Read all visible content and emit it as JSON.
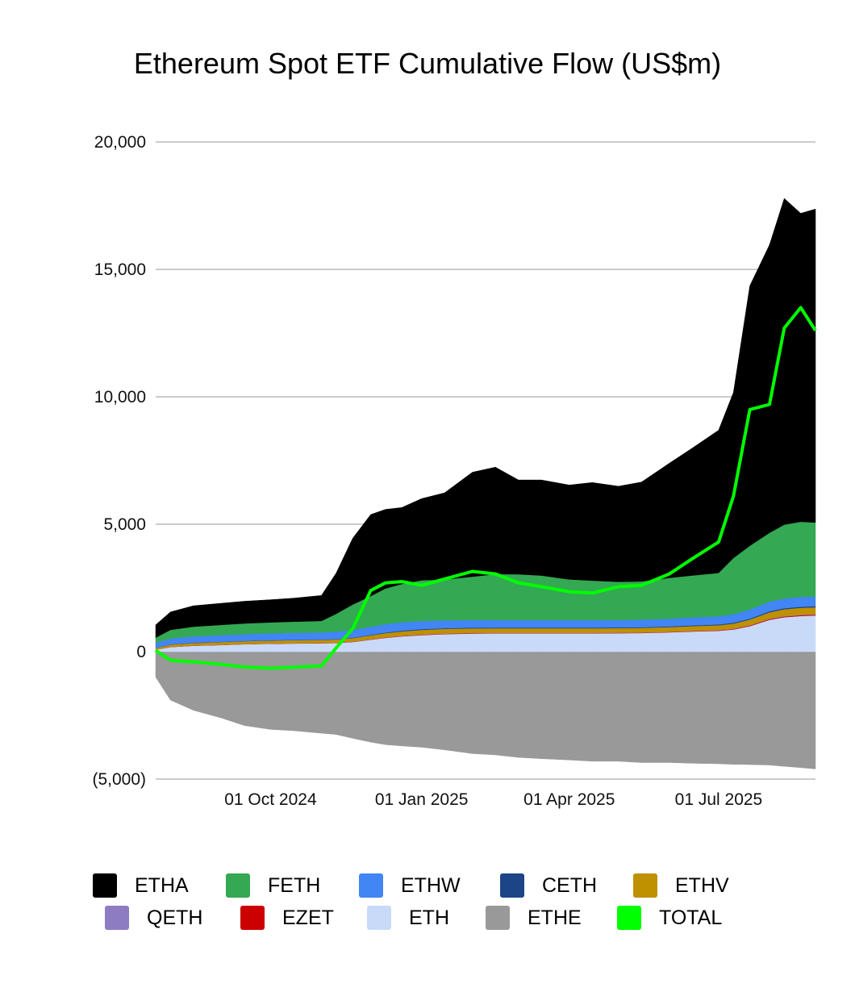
{
  "chart_data": {
    "type": "area",
    "title": "Ethereum Spot ETF Cumulative Flow (US$m)",
    "xlabel": "",
    "ylabel": "",
    "ylim": [
      -5000,
      20000
    ],
    "yticks": [
      {
        "value": 20000,
        "label": "20,000"
      },
      {
        "value": 15000,
        "label": "15,000"
      },
      {
        "value": 10000,
        "label": "10,000"
      },
      {
        "value": 5000,
        "label": "5,000"
      },
      {
        "value": 0,
        "label": "0"
      },
      {
        "value": -5000,
        "label": "(5,000)"
      }
    ],
    "xrange": [
      "2024-07-23",
      "2025-08-29"
    ],
    "xticks": [
      {
        "date": "2024-10-01",
        "label": "01 Oct 2024"
      },
      {
        "date": "2025-01-01",
        "label": "01 Jan 2025"
      },
      {
        "date": "2025-04-01",
        "label": "01 Apr 2025"
      },
      {
        "date": "2025-07-01",
        "label": "01 Jul 2025"
      }
    ],
    "grid": true,
    "legend_position": "bottom",
    "x": [
      "2024-07-23",
      "2024-08-01",
      "2024-08-15",
      "2024-09-01",
      "2024-09-15",
      "2024-10-01",
      "2024-10-15",
      "2024-11-01",
      "2024-11-10",
      "2024-11-20",
      "2024-12-01",
      "2024-12-10",
      "2024-12-20",
      "2025-01-01",
      "2025-01-15",
      "2025-02-01",
      "2025-02-15",
      "2025-03-01",
      "2025-03-15",
      "2025-04-01",
      "2025-04-15",
      "2025-05-01",
      "2025-05-15",
      "2025-06-01",
      "2025-06-15",
      "2025-07-01",
      "2025-07-10",
      "2025-07-20",
      "2025-08-01",
      "2025-08-10",
      "2025-08-20",
      "2025-08-29"
    ],
    "series": [
      {
        "name": "ETHE",
        "color": "#999999",
        "values": [
          -1000,
          -1900,
          -2300,
          -2600,
          -2900,
          -3050,
          -3100,
          -3200,
          -3250,
          -3400,
          -3550,
          -3650,
          -3700,
          -3750,
          -3850,
          -4000,
          -4050,
          -4150,
          -4200,
          -4250,
          -4300,
          -4300,
          -4350,
          -4350,
          -4380,
          -4400,
          -4420,
          -4430,
          -4450,
          -4500,
          -4550,
          -4600
        ]
      },
      {
        "name": "ETH",
        "color": "#c9daf8",
        "values": [
          80,
          180,
          230,
          260,
          290,
          310,
          320,
          330,
          340,
          380,
          470,
          540,
          600,
          650,
          690,
          710,
          720,
          720,
          720,
          720,
          720,
          725,
          730,
          760,
          790,
          820,
          870,
          1000,
          1250,
          1350,
          1400,
          1420
        ]
      },
      {
        "name": "EZET",
        "color": "#cc0000",
        "values": [
          3,
          5,
          6,
          6,
          7,
          7,
          8,
          8,
          9,
          10,
          12,
          14,
          15,
          15,
          15,
          15,
          15,
          15,
          15,
          15,
          15,
          15,
          15,
          16,
          17,
          18,
          20,
          24,
          28,
          30,
          31,
          32
        ]
      },
      {
        "name": "QETH",
        "color": "#8e7cc3",
        "values": [
          2,
          3,
          4,
          4,
          4,
          5,
          5,
          5,
          6,
          6,
          7,
          8,
          8,
          9,
          9,
          9,
          9,
          9,
          9,
          9,
          9,
          9,
          9,
          10,
          10,
          11,
          12,
          14,
          16,
          18,
          19,
          20
        ]
      },
      {
        "name": "ETHV",
        "color": "#bf9000",
        "values": [
          60,
          90,
          100,
          110,
          110,
          115,
          118,
          120,
          125,
          135,
          150,
          165,
          175,
          180,
          180,
          180,
          175,
          175,
          175,
          175,
          175,
          175,
          178,
          180,
          185,
          190,
          200,
          220,
          250,
          265,
          270,
          270
        ]
      },
      {
        "name": "CETH",
        "color": "#1c4587",
        "values": [
          5,
          8,
          10,
          10,
          11,
          11,
          12,
          13,
          14,
          16,
          20,
          24,
          27,
          28,
          28,
          28,
          28,
          28,
          28,
          28,
          28,
          28,
          28,
          29,
          30,
          31,
          33,
          36,
          40,
          42,
          43,
          44
        ]
      },
      {
        "name": "ETHW",
        "color": "#4285f4",
        "values": [
          200,
          230,
          250,
          260,
          265,
          270,
          275,
          280,
          290,
          300,
          320,
          330,
          330,
          320,
          310,
          300,
          295,
          290,
          290,
          290,
          290,
          290,
          295,
          300,
          310,
          320,
          340,
          360,
          380,
          380,
          385,
          380
        ]
      },
      {
        "name": "FETH",
        "color": "#34a853",
        "values": [
          200,
          340,
          380,
          400,
          420,
          430,
          440,
          450,
          700,
          1000,
          1200,
          1400,
          1500,
          1600,
          1600,
          1700,
          1800,
          1800,
          1750,
          1600,
          1550,
          1500,
          1500,
          1600,
          1650,
          1700,
          2200,
          2500,
          2700,
          2900,
          2950,
          2900
        ]
      },
      {
        "name": "ETHA",
        "color": "#000000",
        "values": [
          500,
          700,
          820,
          850,
          870,
          890,
          920,
          1000,
          1600,
          2600,
          3200,
          3100,
          3000,
          3200,
          3400,
          4100,
          4200,
          3700,
          3750,
          3700,
          3850,
          3750,
          3900,
          4500,
          5000,
          5600,
          6500,
          10200,
          11300,
          12800,
          12100,
          12300
        ]
      }
    ],
    "total": {
      "name": "TOTAL",
      "color": "#00ff00",
      "values": [
        50,
        -340,
        -400,
        -500,
        -600,
        -650,
        -610,
        -560,
        150,
        900,
        2400,
        2700,
        2750,
        2600,
        2850,
        3150,
        3050,
        2700,
        2550,
        2350,
        2300,
        2550,
        2600,
        3050,
        3650,
        4300,
        6100,
        9500,
        9700,
        12700,
        13500,
        12600
      ]
    }
  },
  "legend": [
    [
      {
        "label": "ETHA",
        "color": "#000000"
      },
      {
        "label": "FETH",
        "color": "#34a853"
      },
      {
        "label": "ETHW",
        "color": "#4285f4"
      },
      {
        "label": "CETH",
        "color": "#1c4587"
      },
      {
        "label": "ETHV",
        "color": "#bf9000"
      }
    ],
    [
      {
        "label": "QETH",
        "color": "#8e7cc3"
      },
      {
        "label": "EZET",
        "color": "#cc0000"
      },
      {
        "label": "ETH",
        "color": "#c9daf8"
      },
      {
        "label": "ETHE",
        "color": "#999999"
      },
      {
        "label": "TOTAL",
        "color": "#00ff00"
      }
    ]
  ]
}
